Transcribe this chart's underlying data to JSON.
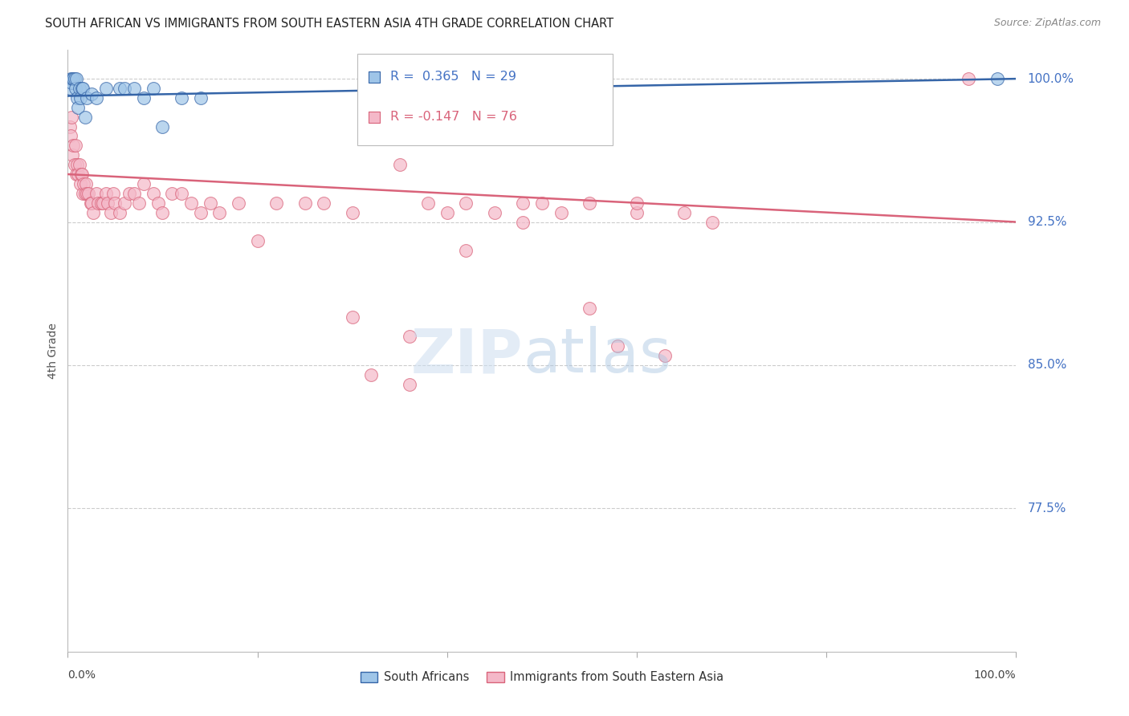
{
  "title": "SOUTH AFRICAN VS IMMIGRANTS FROM SOUTH EASTERN ASIA 4TH GRADE CORRELATION CHART",
  "source": "Source: ZipAtlas.com",
  "ylabel": "4th Grade",
  "yticks": [
    100.0,
    92.5,
    85.0,
    77.5
  ],
  "ytick_labels": [
    "100.0%",
    "92.5%",
    "85.0%",
    "77.5%"
  ],
  "legend_blue_r": "0.365",
  "legend_blue_n": "29",
  "legend_pink_r": "-0.147",
  "legend_pink_n": "76",
  "legend_label_blue": "South Africans",
  "legend_label_pink": "Immigrants from South Eastern Asia",
  "blue_fill": "#9fc5e8",
  "pink_fill": "#f4b8c8",
  "line_blue_color": "#3565a8",
  "line_pink_color": "#d9637a",
  "blue_points_x": [
    0.2,
    0.3,
    0.4,
    0.5,
    0.6,
    0.7,
    0.8,
    0.9,
    1.0,
    1.1,
    1.2,
    1.3,
    1.5,
    1.6,
    1.8,
    2.0,
    2.5,
    3.0,
    4.0,
    5.5,
    6.0,
    7.0,
    8.0,
    9.0,
    10.0,
    12.0,
    14.0,
    50.0,
    98.0
  ],
  "blue_points_y": [
    99.5,
    100.0,
    99.8,
    100.0,
    100.0,
    100.0,
    99.5,
    100.0,
    99.0,
    98.5,
    99.5,
    99.0,
    99.5,
    99.5,
    98.0,
    99.0,
    99.2,
    99.0,
    99.5,
    99.5,
    99.5,
    99.5,
    99.0,
    99.5,
    97.5,
    99.0,
    99.0,
    99.5,
    100.0
  ],
  "pink_points_x": [
    0.2,
    0.3,
    0.4,
    0.5,
    0.6,
    0.7,
    0.8,
    0.9,
    1.0,
    1.1,
    1.2,
    1.3,
    1.4,
    1.5,
    1.6,
    1.7,
    1.8,
    1.9,
    2.0,
    2.2,
    2.4,
    2.5,
    2.7,
    3.0,
    3.2,
    3.5,
    3.7,
    4.0,
    4.2,
    4.5,
    4.8,
    5.0,
    5.5,
    6.0,
    6.5,
    7.0,
    7.5,
    8.0,
    9.0,
    9.5,
    10.0,
    11.0,
    12.0,
    13.0,
    14.0,
    15.0,
    16.0,
    18.0,
    20.0,
    22.0,
    25.0,
    27.0,
    30.0,
    35.0,
    38.0,
    40.0,
    42.0,
    45.0,
    48.0,
    50.0,
    52.0,
    55.0,
    60.0,
    65.0,
    95.0,
    32.0,
    36.0,
    58.0,
    63.0,
    42.0,
    48.0,
    55.0,
    30.0,
    36.0,
    60.0,
    68.0
  ],
  "pink_points_y": [
    97.5,
    97.0,
    98.0,
    96.0,
    96.5,
    95.5,
    96.5,
    95.0,
    95.5,
    95.0,
    95.5,
    94.5,
    95.0,
    95.0,
    94.0,
    94.5,
    94.0,
    94.5,
    94.0,
    94.0,
    93.5,
    93.5,
    93.0,
    94.0,
    93.5,
    93.5,
    93.5,
    94.0,
    93.5,
    93.0,
    94.0,
    93.5,
    93.0,
    93.5,
    94.0,
    94.0,
    93.5,
    94.5,
    94.0,
    93.5,
    93.0,
    94.0,
    94.0,
    93.5,
    93.0,
    93.5,
    93.0,
    93.5,
    91.5,
    93.5,
    93.5,
    93.5,
    93.0,
    95.5,
    93.5,
    93.0,
    93.5,
    93.0,
    93.5,
    93.5,
    93.0,
    93.5,
    93.0,
    93.0,
    100.0,
    84.5,
    84.0,
    86.0,
    85.5,
    91.0,
    92.5,
    88.0,
    87.5,
    86.5,
    93.5,
    92.5
  ],
  "blue_trend_x0": 0.0,
  "blue_trend_y0": 99.1,
  "blue_trend_x1": 100.0,
  "blue_trend_y1": 100.0,
  "pink_trend_x0": 0.0,
  "pink_trend_y0": 95.0,
  "pink_trend_x1": 100.0,
  "pink_trend_y1": 92.5,
  "xmin": 0.0,
  "xmax": 100.0,
  "ymin": 70.0,
  "ymax": 101.5,
  "marker_size": 130,
  "background_color": "#ffffff"
}
